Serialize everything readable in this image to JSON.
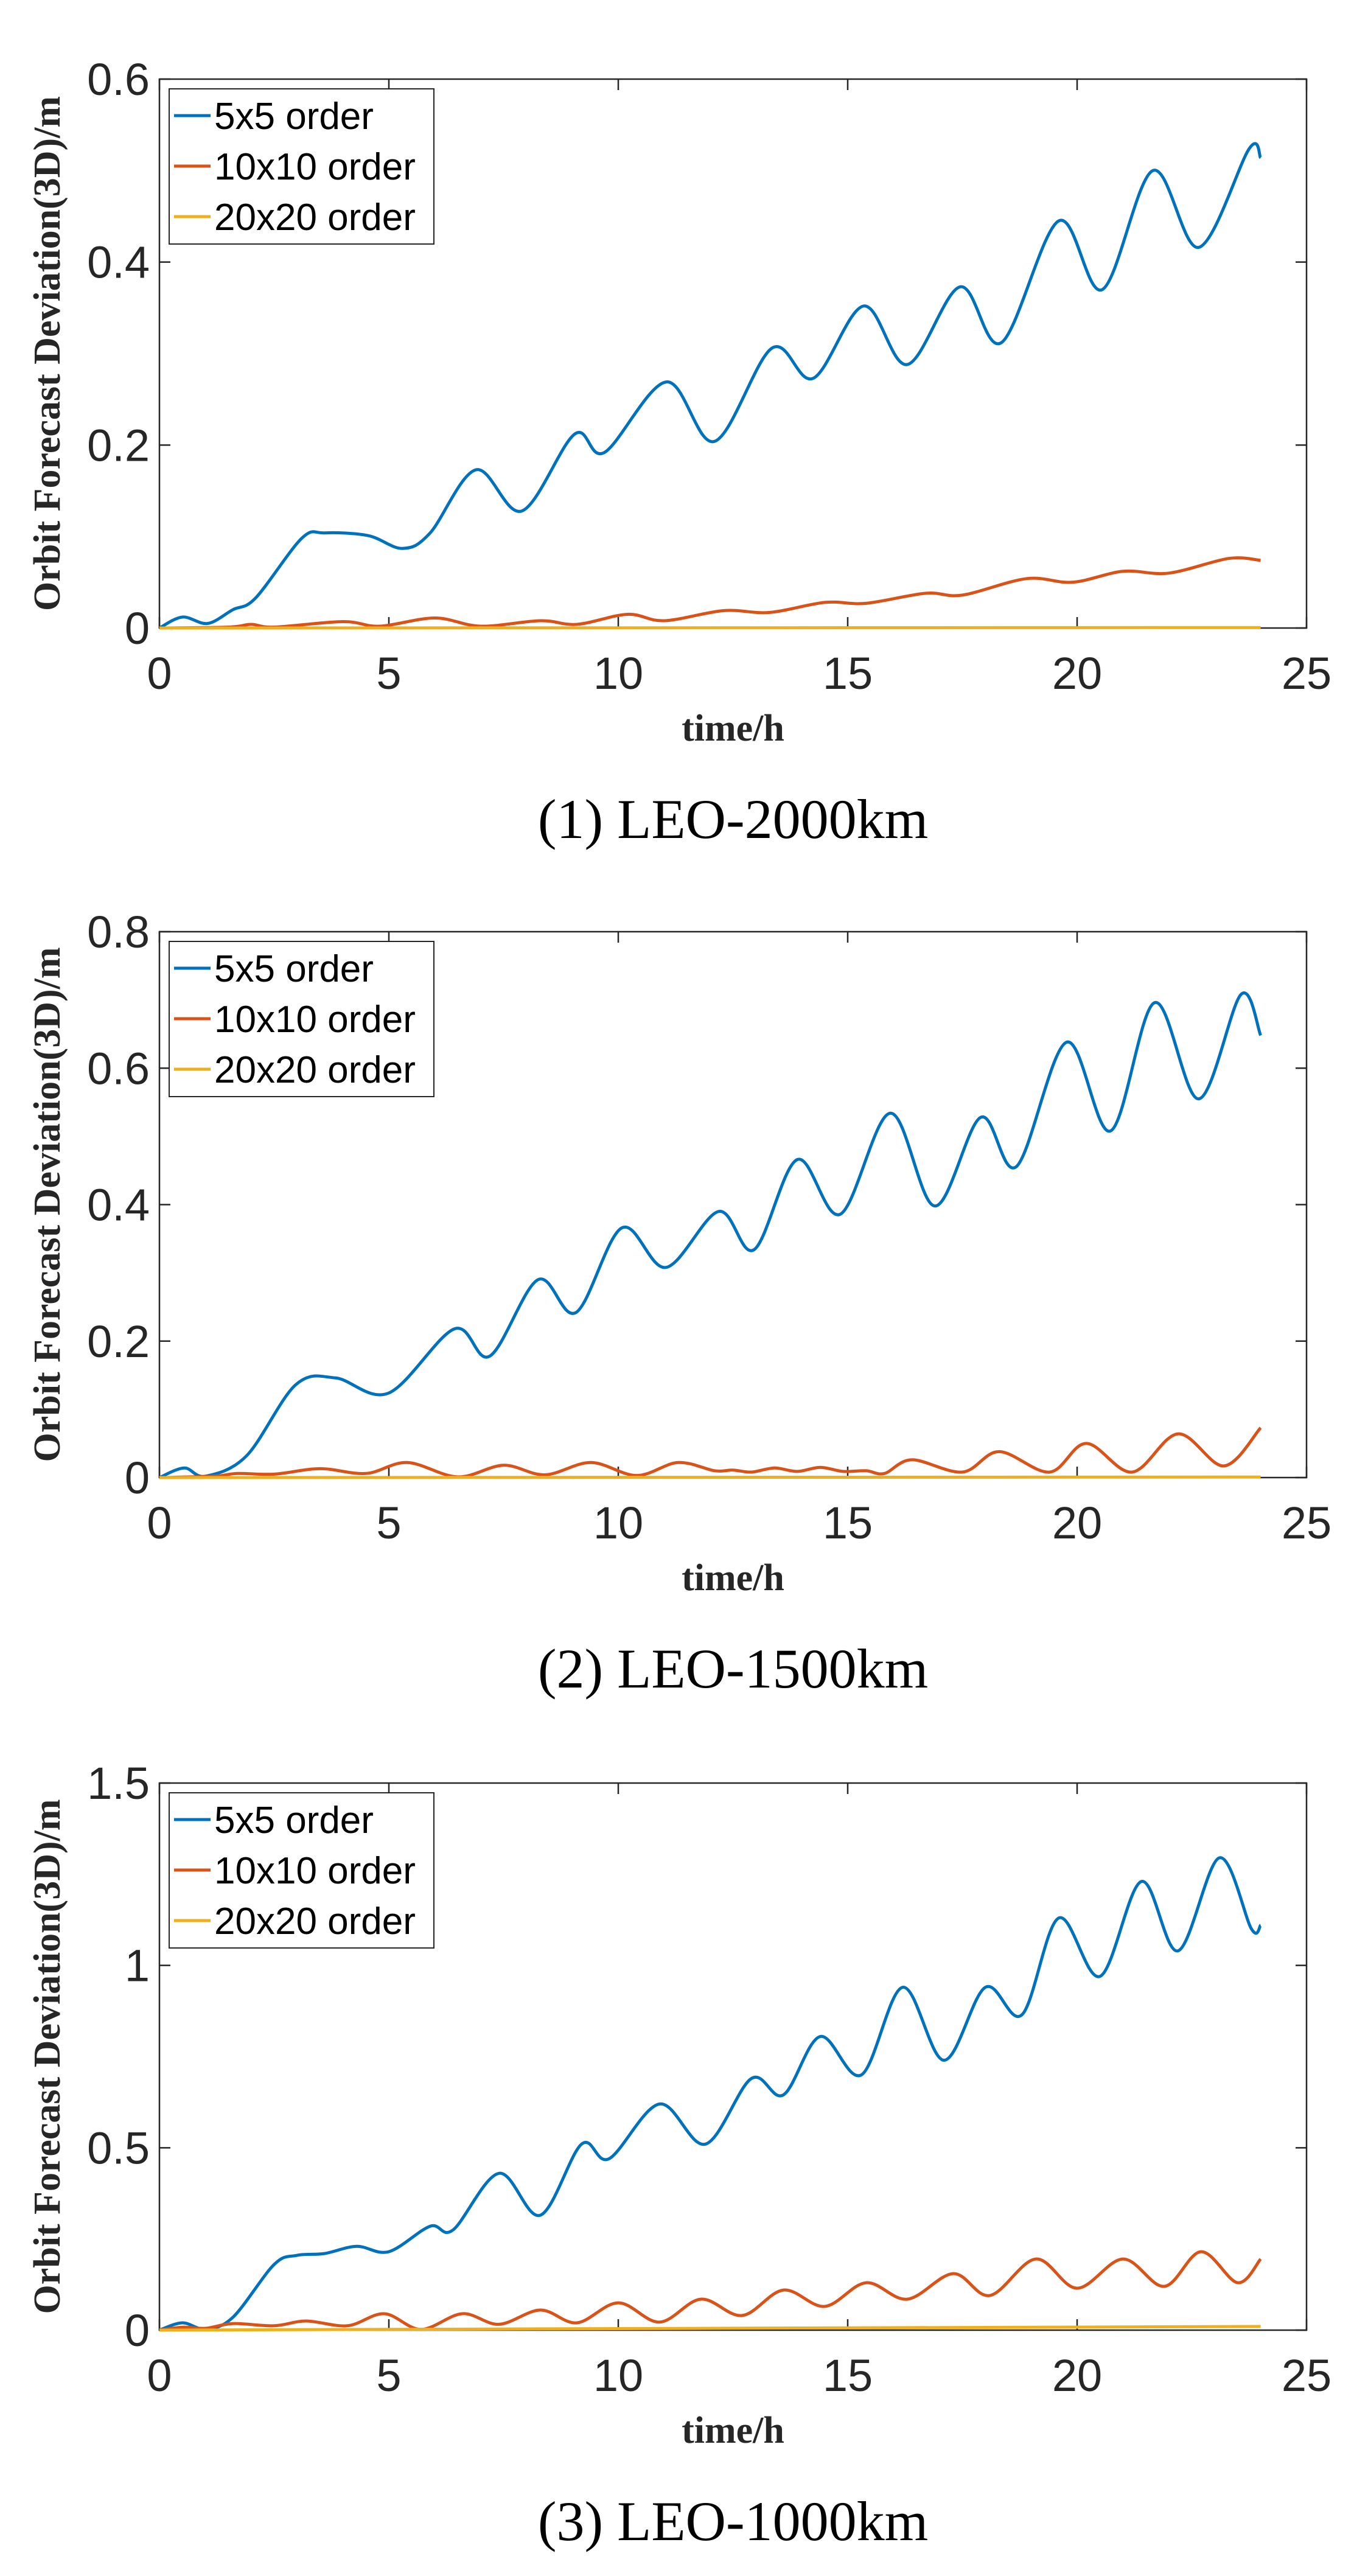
{
  "chart_data": [
    {
      "type": "line",
      "caption": "(1) LEO-2000km",
      "xlabel": "time/h",
      "ylabel": "Orbit Forecast Deviation(3D)/m",
      "xlim": [
        0,
        25
      ],
      "ylim": [
        0,
        0.6
      ],
      "xticks": [
        0,
        5,
        10,
        15,
        20,
        25
      ],
      "yticks": [
        0,
        0.2,
        0.4,
        0.6
      ],
      "ytick_labels": [
        "0",
        "0.2",
        "0.4",
        "0.6"
      ],
      "grid": false,
      "legend": "top-left",
      "series": [
        {
          "name": "5x5 order",
          "color": "#0072BD",
          "x": [
            0,
            0.5,
            1.05,
            1.6,
            2.1,
            3.1,
            3.6,
            4.55,
            5.3,
            5.9,
            6.9,
            7.9,
            9.05,
            9.7,
            11.05,
            12.1,
            13.35,
            14.25,
            15.35,
            16.3,
            17.45,
            18.35,
            19.6,
            20.55,
            21.65,
            22.65,
            23.75,
            24
          ],
          "y": [
            0,
            0.012,
            0.005,
            0.02,
            0.033,
            0.098,
            0.104,
            0.101,
            0.087,
            0.104,
            0.173,
            0.128,
            0.212,
            0.192,
            0.269,
            0.204,
            0.306,
            0.273,
            0.352,
            0.288,
            0.373,
            0.312,
            0.445,
            0.37,
            0.5,
            0.416,
            0.524,
            0.514
          ]
        },
        {
          "name": "10x10 order",
          "color": "#D95319",
          "x": [
            0,
            1.5,
            2,
            2.5,
            4,
            4.8,
            6,
            7,
            8.3,
            9.1,
            10.2,
            11,
            12.3,
            13.3,
            14.5,
            15.4,
            16.7,
            17.5,
            18.9,
            19.9,
            21,
            22,
            23.3,
            24
          ],
          "y": [
            0,
            0.001,
            0.004,
            0.001,
            0.007,
            0.002,
            0.011,
            0.002,
            0.008,
            0.004,
            0.015,
            0.008,
            0.019,
            0.017,
            0.028,
            0.027,
            0.038,
            0.036,
            0.054,
            0.05,
            0.062,
            0.06,
            0.076,
            0.074
          ]
        },
        {
          "name": "20x20 order",
          "color": "#EDB120",
          "x": [
            0,
            24
          ],
          "y": [
            0,
            0.0005
          ]
        }
      ]
    },
    {
      "type": "line",
      "caption": "(2) LEO-1500km",
      "xlabel": "time/h",
      "ylabel": "Orbit Forecast Deviation(3D)/m",
      "xlim": [
        0,
        25
      ],
      "ylim": [
        0,
        0.8
      ],
      "xticks": [
        0,
        5,
        10,
        15,
        20,
        25
      ],
      "yticks": [
        0,
        0.2,
        0.4,
        0.6,
        0.8
      ],
      "ytick_labels": [
        "0",
        "0.2",
        "0.4",
        "0.6",
        "0.8"
      ],
      "grid": false,
      "legend": "top-left",
      "series": [
        {
          "name": "5x5 order",
          "color": "#0072BD",
          "x": [
            0,
            0.54,
            1.0,
            1.9,
            2.97,
            3.84,
            5.0,
            6.43,
            7.2,
            8.25,
            9.08,
            10.08,
            11.04,
            12.19,
            12.96,
            13.9,
            14.84,
            15.93,
            16.9,
            17.9,
            18.68,
            19.77,
            20.73,
            21.69,
            22.65,
            23.57,
            24
          ],
          "y": [
            0,
            0.014,
            0.002,
            0.032,
            0.136,
            0.146,
            0.124,
            0.218,
            0.178,
            0.29,
            0.242,
            0.366,
            0.308,
            0.39,
            0.334,
            0.466,
            0.386,
            0.534,
            0.398,
            0.528,
            0.456,
            0.638,
            0.508,
            0.696,
            0.555,
            0.708,
            0.648
          ]
        },
        {
          "name": "10x10 order",
          "color": "#D95319",
          "x": [
            0,
            1.2,
            1.7,
            2.5,
            3.5,
            4.5,
            5.4,
            6.5,
            7.5,
            8.4,
            9.4,
            10.4,
            11.3,
            12.1,
            12.5,
            12.9,
            13.4,
            13.9,
            14.4,
            14.9,
            15.4,
            15.8,
            16.4,
            17.5,
            18.3,
            19.4,
            20.2,
            21.2,
            22.2,
            23.2,
            24
          ],
          "y": [
            0,
            0.002,
            0.006,
            0.005,
            0.013,
            0.006,
            0.022,
            0.001,
            0.018,
            0.004,
            0.022,
            0.003,
            0.022,
            0.01,
            0.011,
            0.008,
            0.014,
            0.009,
            0.015,
            0.009,
            0.01,
            0.006,
            0.026,
            0.008,
            0.038,
            0.008,
            0.05,
            0.008,
            0.064,
            0.017,
            0.073
          ]
        },
        {
          "name": "20x20 order",
          "color": "#EDB120",
          "x": [
            0,
            24
          ],
          "y": [
            0,
            0.0008
          ]
        }
      ]
    },
    {
      "type": "line",
      "caption": "(3) LEO-1000km",
      "xlabel": "time/h",
      "ylabel": "Orbit Forecast Deviation(3D)/m",
      "xlim": [
        0,
        25
      ],
      "ylim": [
        0,
        1.5
      ],
      "xticks": [
        0,
        5,
        10,
        15,
        20,
        25
      ],
      "yticks": [
        0,
        0.5,
        1,
        1.5
      ],
      "ytick_labels": [
        "0",
        "0.5",
        "1",
        "1.5"
      ],
      "grid": false,
      "legend": "top-left",
      "series": [
        {
          "name": "5x5 order",
          "color": "#0072BD",
          "x": [
            0,
            0.5,
            1.0,
            1.6,
            2.5,
            3,
            3.6,
            4.3,
            5,
            5.9,
            6.4,
            7.4,
            8.3,
            9.2,
            9.8,
            10.9,
            11.9,
            12.9,
            13.6,
            14.4,
            15.3,
            16.2,
            17.1,
            18,
            18.8,
            19.6,
            20.5,
            21.4,
            22.2,
            23.1,
            23.8,
            24
          ],
          "y": [
            0,
            0.02,
            0.003,
            0.035,
            0.18,
            0.205,
            0.21,
            0.23,
            0.215,
            0.285,
            0.275,
            0.43,
            0.315,
            0.51,
            0.47,
            0.62,
            0.51,
            0.69,
            0.645,
            0.805,
            0.7,
            0.94,
            0.74,
            0.94,
            0.865,
            1.13,
            0.97,
            1.23,
            1.04,
            1.295,
            1.1,
            1.11
          ]
        },
        {
          "name": "10x10 order",
          "color": "#D95319",
          "x": [
            0,
            0.5,
            1,
            1.6,
            2.5,
            3.2,
            4.1,
            4.9,
            5.7,
            6.6,
            7.4,
            8.3,
            9.1,
            10,
            10.9,
            11.8,
            12.7,
            13.6,
            14.5,
            15.4,
            16.3,
            17.3,
            18.1,
            19.1,
            20,
            21,
            21.9,
            22.7,
            23.5,
            24
          ],
          "y": [
            0,
            0.008,
            0.005,
            0.018,
            0.012,
            0.025,
            0.012,
            0.045,
            0.002,
            0.045,
            0.016,
            0.055,
            0.02,
            0.075,
            0.022,
            0.085,
            0.04,
            0.11,
            0.065,
            0.13,
            0.085,
            0.155,
            0.095,
            0.195,
            0.115,
            0.195,
            0.12,
            0.215,
            0.13,
            0.195
          ]
        },
        {
          "name": "20x20 order",
          "color": "#EDB120",
          "x": [
            0,
            24
          ],
          "y": [
            0,
            0.01
          ]
        }
      ]
    }
  ]
}
